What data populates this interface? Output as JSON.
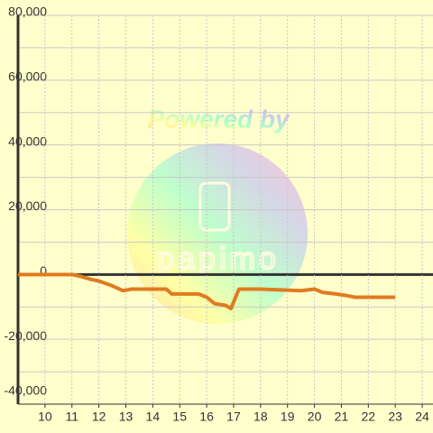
{
  "chart_data": {
    "type": "line",
    "watermark": "Powered by",
    "watermark_logo": "papimo",
    "x": [
      9,
      11,
      11.3,
      11.7,
      12,
      12.5,
      12.9,
      13.2,
      14.5,
      14.7,
      15.7,
      16,
      16.3,
      16.7,
      16.9,
      17.2,
      18,
      19.5,
      20,
      20.3,
      20.8,
      21.2,
      21.5,
      23
    ],
    "series": [
      {
        "color": "#e07b20",
        "values": [
          0,
          0,
          -500,
          -1500,
          -2000,
          -3500,
          -5000,
          -4500,
          -4500,
          -6000,
          -6000,
          -7000,
          -9000,
          -9500,
          -10500,
          -4500,
          -4500,
          -5000,
          -4500,
          -5500,
          -6000,
          -6500,
          -7000,
          -7000
        ]
      }
    ],
    "xlim": [
      9,
      24.4
    ],
    "xticks": [
      10,
      11,
      12,
      13,
      14,
      15,
      16,
      17,
      18,
      19,
      20,
      21,
      22,
      23,
      24
    ],
    "ylim": [
      -40000,
      80000
    ],
    "yticks": [
      {
        "value": -40000,
        "label": "-40,000"
      },
      {
        "value": -20000,
        "label": "-20,000"
      },
      0,
      {
        "value": 20000,
        "label": "20,000"
      },
      {
        "value": 40000,
        "label": "40,000"
      },
      {
        "value": 60000,
        "label": "60,000"
      },
      {
        "value": 80000,
        "label": "80,000"
      }
    ],
    "y_minor_ticks": [
      -30000,
      -10000,
      10000,
      30000,
      50000,
      70000
    ],
    "grid": true
  }
}
